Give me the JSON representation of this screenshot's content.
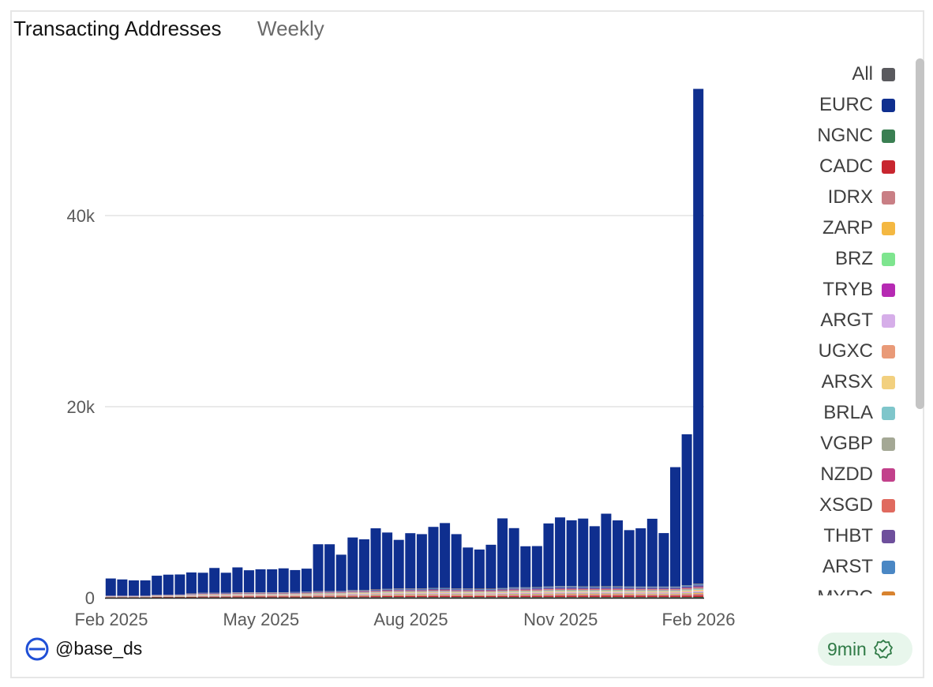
{
  "header": {
    "title": "Transacting Addresses",
    "subtitle": "Weekly"
  },
  "footer": {
    "handle": "@base_ds",
    "freshness": "9min"
  },
  "colors": {
    "EURC": "#0f2f8f",
    "NGNC": "#3a7f52",
    "CADC": "#c8262f",
    "IDRX": "#c97f85",
    "ZARP": "#f4b842",
    "BRZ": "#7ee58f",
    "TRYB": "#b62ab3",
    "ARGT": "#d6aee9",
    "UGXC": "#e99a78",
    "ARSX": "#f2d07f",
    "BRLA": "#7fc6cb",
    "VGBP": "#a4a895",
    "NZDD": "#c2418b",
    "XSGD": "#e06a5f",
    "THBT": "#6e4f9c",
    "ARST": "#4a87c4",
    "MYRC": "#d8832f",
    "All": "#5a5a5e",
    "badge": "#2f7a46"
  },
  "legend": [
    {
      "label": "All",
      "color": "#5a5a5e"
    },
    {
      "label": "EURC",
      "color": "#0f2f8f"
    },
    {
      "label": "NGNC",
      "color": "#3a7f52"
    },
    {
      "label": "CADC",
      "color": "#c8262f"
    },
    {
      "label": "IDRX",
      "color": "#c97f85"
    },
    {
      "label": "ZARP",
      "color": "#f4b842"
    },
    {
      "label": "BRZ",
      "color": "#7ee58f"
    },
    {
      "label": "TRYB",
      "color": "#b62ab3"
    },
    {
      "label": "ARGT",
      "color": "#d6aee9"
    },
    {
      "label": "UGXC",
      "color": "#e99a78"
    },
    {
      "label": "ARSX",
      "color": "#f2d07f"
    },
    {
      "label": "BRLA",
      "color": "#7fc6cb"
    },
    {
      "label": "VGBP",
      "color": "#a4a895"
    },
    {
      "label": "NZDD",
      "color": "#c2418b"
    },
    {
      "label": "XSGD",
      "color": "#e06a5f"
    },
    {
      "label": "THBT",
      "color": "#6e4f9c"
    },
    {
      "label": "ARST",
      "color": "#4a87c4"
    },
    {
      "label": "MYRC",
      "color": "#d8832f"
    }
  ],
  "chart_data": {
    "type": "bar",
    "stacked": true,
    "title": "Transacting Addresses",
    "subtitle": "Weekly",
    "xlabel": "",
    "ylabel": "",
    "ylim": [
      0,
      53000
    ],
    "yticks": [
      0,
      20000,
      40000
    ],
    "ytick_labels": [
      "0",
      "20k",
      "40k"
    ],
    "xticks": [
      {
        "label": "Feb 2025",
        "index": 0
      },
      {
        "label": "May 2025",
        "index": 13
      },
      {
        "label": "Aug 2025",
        "index": 26
      },
      {
        "label": "Nov 2025",
        "index": 39
      },
      {
        "label": "Feb 2026",
        "index": 52
      }
    ],
    "grid": true,
    "legend_position": "right",
    "series": [
      {
        "name": "EURC",
        "values": [
          1800,
          1700,
          1600,
          1600,
          2000,
          2100,
          2100,
          2200,
          2100,
          2600,
          2100,
          2600,
          2300,
          2400,
          2400,
          2500,
          2300,
          2400,
          4900,
          4900,
          3800,
          5500,
          5300,
          6400,
          5900,
          5100,
          5800,
          5700,
          6400,
          6800,
          5700,
          4300,
          4100,
          4600,
          7300,
          6200,
          4300,
          4300,
          6600,
          7200,
          6900,
          7100,
          6300,
          7600,
          6900,
          5900,
          6100,
          7100,
          5600,
          12500,
          15800,
          51800
        ]
      },
      {
        "name": "NGNC",
        "values": [
          30,
          30,
          30,
          30,
          40,
          40,
          40,
          40,
          50,
          50,
          50,
          50,
          50,
          50,
          50,
          50,
          50,
          50,
          60,
          60,
          60,
          60,
          60,
          60,
          70,
          70,
          70,
          70,
          70,
          70,
          70,
          70,
          70,
          70,
          70,
          70,
          70,
          70,
          70,
          70,
          70,
          70,
          70,
          70,
          70,
          70,
          70,
          70,
          70,
          70,
          70,
          80
        ]
      },
      {
        "name": "CADC",
        "values": [
          30,
          30,
          30,
          30,
          40,
          40,
          40,
          50,
          60,
          60,
          60,
          70,
          70,
          70,
          70,
          70,
          70,
          70,
          80,
          80,
          80,
          90,
          90,
          100,
          100,
          110,
          110,
          110,
          120,
          120,
          110,
          110,
          100,
          100,
          110,
          120,
          120,
          120,
          120,
          130,
          130,
          130,
          130,
          140,
          140,
          140,
          130,
          130,
          130,
          130,
          150,
          160
        ]
      },
      {
        "name": "IDRX",
        "values": [
          20,
          20,
          20,
          20,
          30,
          30,
          30,
          40,
          60,
          60,
          60,
          60,
          60,
          60,
          60,
          60,
          70,
          70,
          70,
          70,
          70,
          80,
          80,
          90,
          90,
          100,
          100,
          100,
          120,
          120,
          100,
          100,
          100,
          100,
          120,
          130,
          130,
          140,
          150,
          160,
          160,
          150,
          150,
          150,
          150,
          140,
          140,
          140,
          140,
          140,
          170,
          190
        ]
      },
      {
        "name": "ZARP",
        "values": [
          10,
          10,
          10,
          10,
          10,
          20,
          20,
          20,
          20,
          20,
          20,
          30,
          30,
          30,
          30,
          30,
          30,
          30,
          30,
          30,
          40,
          40,
          40,
          40,
          50,
          50,
          50,
          50,
          50,
          50,
          50,
          50,
          50,
          50,
          50,
          50,
          50,
          50,
          60,
          60,
          60,
          60,
          60,
          60,
          60,
          60,
          60,
          60,
          60,
          60,
          60,
          70
        ]
      },
      {
        "name": "BRZ",
        "values": [
          10,
          10,
          10,
          10,
          10,
          10,
          20,
          20,
          20,
          20,
          20,
          20,
          20,
          20,
          20,
          20,
          20,
          30,
          30,
          30,
          30,
          30,
          40,
          40,
          40,
          40,
          40,
          40,
          40,
          40,
          40,
          40,
          40,
          40,
          40,
          40,
          40,
          40,
          40,
          40,
          40,
          40,
          40,
          40,
          40,
          40,
          40,
          40,
          40,
          40,
          40,
          50
        ]
      },
      {
        "name": "TRYB",
        "values": [
          10,
          10,
          10,
          10,
          10,
          10,
          10,
          20,
          20,
          20,
          20,
          20,
          20,
          20,
          20,
          20,
          20,
          20,
          20,
          20,
          20,
          30,
          30,
          30,
          30,
          30,
          30,
          30,
          30,
          30,
          30,
          30,
          30,
          30,
          30,
          30,
          30,
          30,
          30,
          30,
          30,
          30,
          30,
          30,
          30,
          30,
          30,
          30,
          30,
          30,
          30,
          40
        ]
      },
      {
        "name": "ARGT",
        "values": [
          10,
          10,
          10,
          10,
          20,
          20,
          20,
          30,
          30,
          30,
          30,
          40,
          40,
          40,
          40,
          40,
          40,
          40,
          50,
          50,
          50,
          60,
          60,
          60,
          70,
          70,
          70,
          70,
          70,
          70,
          70,
          70,
          70,
          70,
          70,
          80,
          80,
          80,
          80,
          80,
          80,
          80,
          80,
          80,
          80,
          80,
          80,
          80,
          80,
          80,
          90,
          90
        ]
      },
      {
        "name": "UGXC",
        "values": [
          10,
          10,
          10,
          10,
          10,
          10,
          10,
          20,
          20,
          20,
          20,
          20,
          20,
          20,
          20,
          20,
          20,
          20,
          30,
          30,
          30,
          30,
          30,
          30,
          30,
          30,
          30,
          30,
          30,
          30,
          30,
          30,
          30,
          30,
          30,
          30,
          30,
          30,
          30,
          30,
          30,
          30,
          30,
          30,
          30,
          30,
          30,
          30,
          30,
          30,
          40,
          40
        ]
      },
      {
        "name": "ARSX",
        "values": [
          10,
          10,
          10,
          10,
          20,
          20,
          20,
          30,
          30,
          30,
          30,
          40,
          40,
          40,
          40,
          40,
          40,
          50,
          50,
          50,
          50,
          60,
          60,
          60,
          70,
          70,
          70,
          70,
          70,
          70,
          70,
          70,
          70,
          70,
          70,
          80,
          80,
          80,
          90,
          90,
          90,
          90,
          90,
          90,
          90,
          90,
          90,
          90,
          90,
          90,
          100,
          110
        ]
      },
      {
        "name": "BRLA",
        "values": [
          10,
          10,
          10,
          10,
          10,
          10,
          20,
          20,
          20,
          20,
          20,
          20,
          20,
          20,
          20,
          20,
          20,
          30,
          30,
          30,
          30,
          30,
          30,
          40,
          40,
          40,
          40,
          40,
          40,
          40,
          40,
          40,
          40,
          40,
          40,
          40,
          40,
          40,
          50,
          50,
          50,
          50,
          50,
          50,
          50,
          50,
          50,
          50,
          50,
          50,
          50,
          60
        ]
      },
      {
        "name": "VGBP",
        "values": [
          10,
          10,
          10,
          10,
          20,
          20,
          20,
          30,
          30,
          30,
          30,
          40,
          40,
          40,
          40,
          40,
          40,
          40,
          50,
          50,
          50,
          60,
          60,
          60,
          70,
          70,
          70,
          70,
          70,
          70,
          70,
          70,
          70,
          70,
          70,
          80,
          80,
          80,
          90,
          90,
          90,
          90,
          90,
          90,
          90,
          90,
          90,
          90,
          90,
          90,
          100,
          110
        ]
      },
      {
        "name": "NZDD",
        "values": [
          10,
          10,
          10,
          10,
          10,
          10,
          10,
          20,
          20,
          20,
          20,
          20,
          20,
          20,
          20,
          20,
          20,
          20,
          20,
          20,
          20,
          30,
          30,
          30,
          30,
          30,
          30,
          30,
          30,
          30,
          30,
          30,
          30,
          30,
          30,
          30,
          30,
          30,
          30,
          30,
          30,
          30,
          30,
          30,
          30,
          30,
          30,
          30,
          30,
          30,
          30,
          40
        ]
      },
      {
        "name": "XSGD",
        "values": [
          10,
          10,
          10,
          10,
          20,
          20,
          20,
          20,
          30,
          30,
          30,
          30,
          30,
          30,
          30,
          30,
          30,
          40,
          40,
          40,
          40,
          40,
          40,
          50,
          50,
          50,
          50,
          50,
          50,
          50,
          50,
          50,
          50,
          50,
          50,
          60,
          60,
          60,
          60,
          60,
          60,
          60,
          60,
          60,
          60,
          60,
          60,
          60,
          60,
          60,
          70,
          70
        ]
      },
      {
        "name": "THBT",
        "values": [
          20,
          20,
          20,
          20,
          30,
          30,
          30,
          40,
          60,
          60,
          60,
          60,
          60,
          60,
          60,
          60,
          70,
          70,
          70,
          70,
          70,
          80,
          80,
          90,
          90,
          100,
          100,
          100,
          120,
          120,
          100,
          100,
          100,
          100,
          120,
          130,
          130,
          140,
          150,
          160,
          160,
          150,
          150,
          150,
          150,
          140,
          140,
          140,
          140,
          140,
          170,
          190
        ]
      },
      {
        "name": "ARST",
        "values": [
          10,
          10,
          10,
          10,
          20,
          20,
          20,
          30,
          30,
          30,
          30,
          40,
          40,
          40,
          40,
          40,
          40,
          50,
          50,
          50,
          50,
          60,
          60,
          60,
          70,
          70,
          70,
          70,
          80,
          80,
          70,
          70,
          70,
          70,
          80,
          90,
          90,
          90,
          100,
          100,
          100,
          100,
          100,
          100,
          100,
          100,
          100,
          100,
          100,
          100,
          110,
          120
        ]
      },
      {
        "name": "MYRC",
        "values": [
          10,
          10,
          10,
          10,
          10,
          10,
          10,
          20,
          20,
          20,
          20,
          20,
          20,
          20,
          20,
          20,
          20,
          20,
          20,
          20,
          20,
          30,
          30,
          30,
          30,
          30,
          30,
          30,
          30,
          30,
          30,
          30,
          30,
          30,
          30,
          30,
          30,
          30,
          30,
          30,
          30,
          30,
          30,
          30,
          30,
          30,
          30,
          30,
          30,
          30,
          30,
          40
        ]
      }
    ]
  }
}
